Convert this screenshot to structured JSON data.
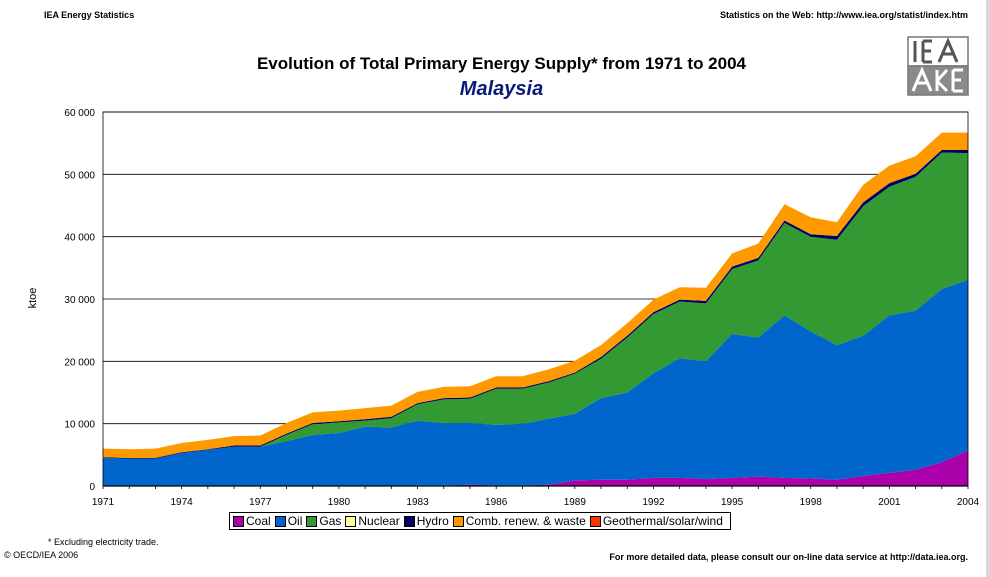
{
  "header": {
    "left": "IEA Energy Statistics",
    "right": "Statistics on the Web: http://www.iea.org/statist/index.htm"
  },
  "footer": {
    "footnote": "* Excluding electricity trade.",
    "copyright": "© OECD/IEA 2006",
    "more_data": "For more detailed data, please consult our on-line data service at http://data.iea.org."
  },
  "chart_data": {
    "type": "area",
    "stacked": true,
    "title": "Evolution of Total Primary Energy Supply* from 1971 to 2004",
    "subtitle": "Malaysia",
    "ylabel": "ktoe",
    "xlabel": "",
    "ylim": [
      0,
      60000
    ],
    "yticks": [
      0,
      10000,
      20000,
      30000,
      40000,
      50000,
      60000
    ],
    "ytick_labels": [
      "0",
      "10 000",
      "20 000",
      "30 000",
      "40 000",
      "50 000",
      "60 000"
    ],
    "xticks": [
      1971,
      1974,
      1977,
      1980,
      1983,
      1986,
      1989,
      1992,
      1995,
      1998,
      2001,
      2004
    ],
    "grid": "horizontal",
    "legend_position": "bottom",
    "x": [
      1971,
      1972,
      1973,
      1974,
      1975,
      1976,
      1977,
      1978,
      1979,
      1980,
      1981,
      1982,
      1983,
      1984,
      1985,
      1986,
      1987,
      1988,
      1989,
      1990,
      1991,
      1992,
      1993,
      1994,
      1995,
      1996,
      1997,
      1998,
      1999,
      2000,
      2001,
      2002,
      2003,
      2004
    ],
    "series": [
      {
        "name": "Coal",
        "color": "#aa00aa",
        "values": [
          0,
          0,
          0,
          0,
          0,
          0,
          0,
          0,
          0,
          0,
          0,
          0,
          100,
          100,
          200,
          100,
          100,
          200,
          900,
          1000,
          1000,
          1300,
          1300,
          1100,
          1300,
          1500,
          1300,
          1200,
          1000,
          1600,
          2100,
          2600,
          3800,
          5700
        ]
      },
      {
        "name": "Oil",
        "color": "#0066cc",
        "values": [
          4500,
          4400,
          4400,
          5300,
          5800,
          6300,
          6300,
          7200,
          8200,
          8500,
          9500,
          9400,
          10400,
          10000,
          9900,
          9700,
          9900,
          10600,
          10700,
          13100,
          14000,
          16800,
          19200,
          18900,
          23100,
          22300,
          26100,
          23600,
          21600,
          22500,
          25300,
          25500,
          27800,
          27400
        ]
      },
      {
        "name": "Gas",
        "color": "#339933",
        "values": [
          0,
          0,
          0,
          0,
          0,
          0,
          0,
          1000,
          1700,
          1700,
          1000,
          1500,
          2600,
          3800,
          3900,
          5800,
          5600,
          5800,
          6400,
          6300,
          8800,
          9500,
          9100,
          9300,
          10400,
          12400,
          14800,
          15200,
          16900,
          20800,
          20600,
          21500,
          21900,
          20300
        ]
      },
      {
        "name": "Nuclear",
        "color": "#ffff99",
        "values": [
          0,
          0,
          0,
          0,
          0,
          0,
          0,
          0,
          0,
          0,
          0,
          0,
          0,
          0,
          0,
          0,
          0,
          0,
          0,
          0,
          0,
          0,
          0,
          0,
          0,
          0,
          0,
          0,
          0,
          0,
          0,
          0,
          0,
          0
        ]
      },
      {
        "name": "Hydro",
        "color": "#000066",
        "values": [
          100,
          100,
          100,
          100,
          100,
          200,
          200,
          200,
          200,
          200,
          200,
          200,
          200,
          200,
          200,
          200,
          200,
          200,
          200,
          300,
          300,
          300,
          300,
          400,
          400,
          400,
          400,
          400,
          600,
          600,
          600,
          500,
          400,
          500
        ]
      },
      {
        "name": "Comb. renew. & waste",
        "color": "#ff9900",
        "values": [
          1400,
          1400,
          1500,
          1500,
          1500,
          1500,
          1600,
          1700,
          1700,
          1700,
          1800,
          1800,
          1800,
          1800,
          1800,
          1800,
          1800,
          1900,
          1900,
          1900,
          2000,
          2000,
          2000,
          2100,
          2100,
          2300,
          2600,
          2700,
          2200,
          2800,
          2800,
          2800,
          2800,
          2800
        ]
      },
      {
        "name": "Geothermal/solar/wind",
        "color": "#ff3300",
        "values": [
          0,
          0,
          0,
          0,
          0,
          0,
          0,
          0,
          0,
          0,
          0,
          0,
          0,
          0,
          0,
          0,
          0,
          0,
          0,
          0,
          0,
          0,
          0,
          0,
          0,
          0,
          0,
          0,
          0,
          0,
          0,
          0,
          0,
          0
        ]
      }
    ]
  }
}
